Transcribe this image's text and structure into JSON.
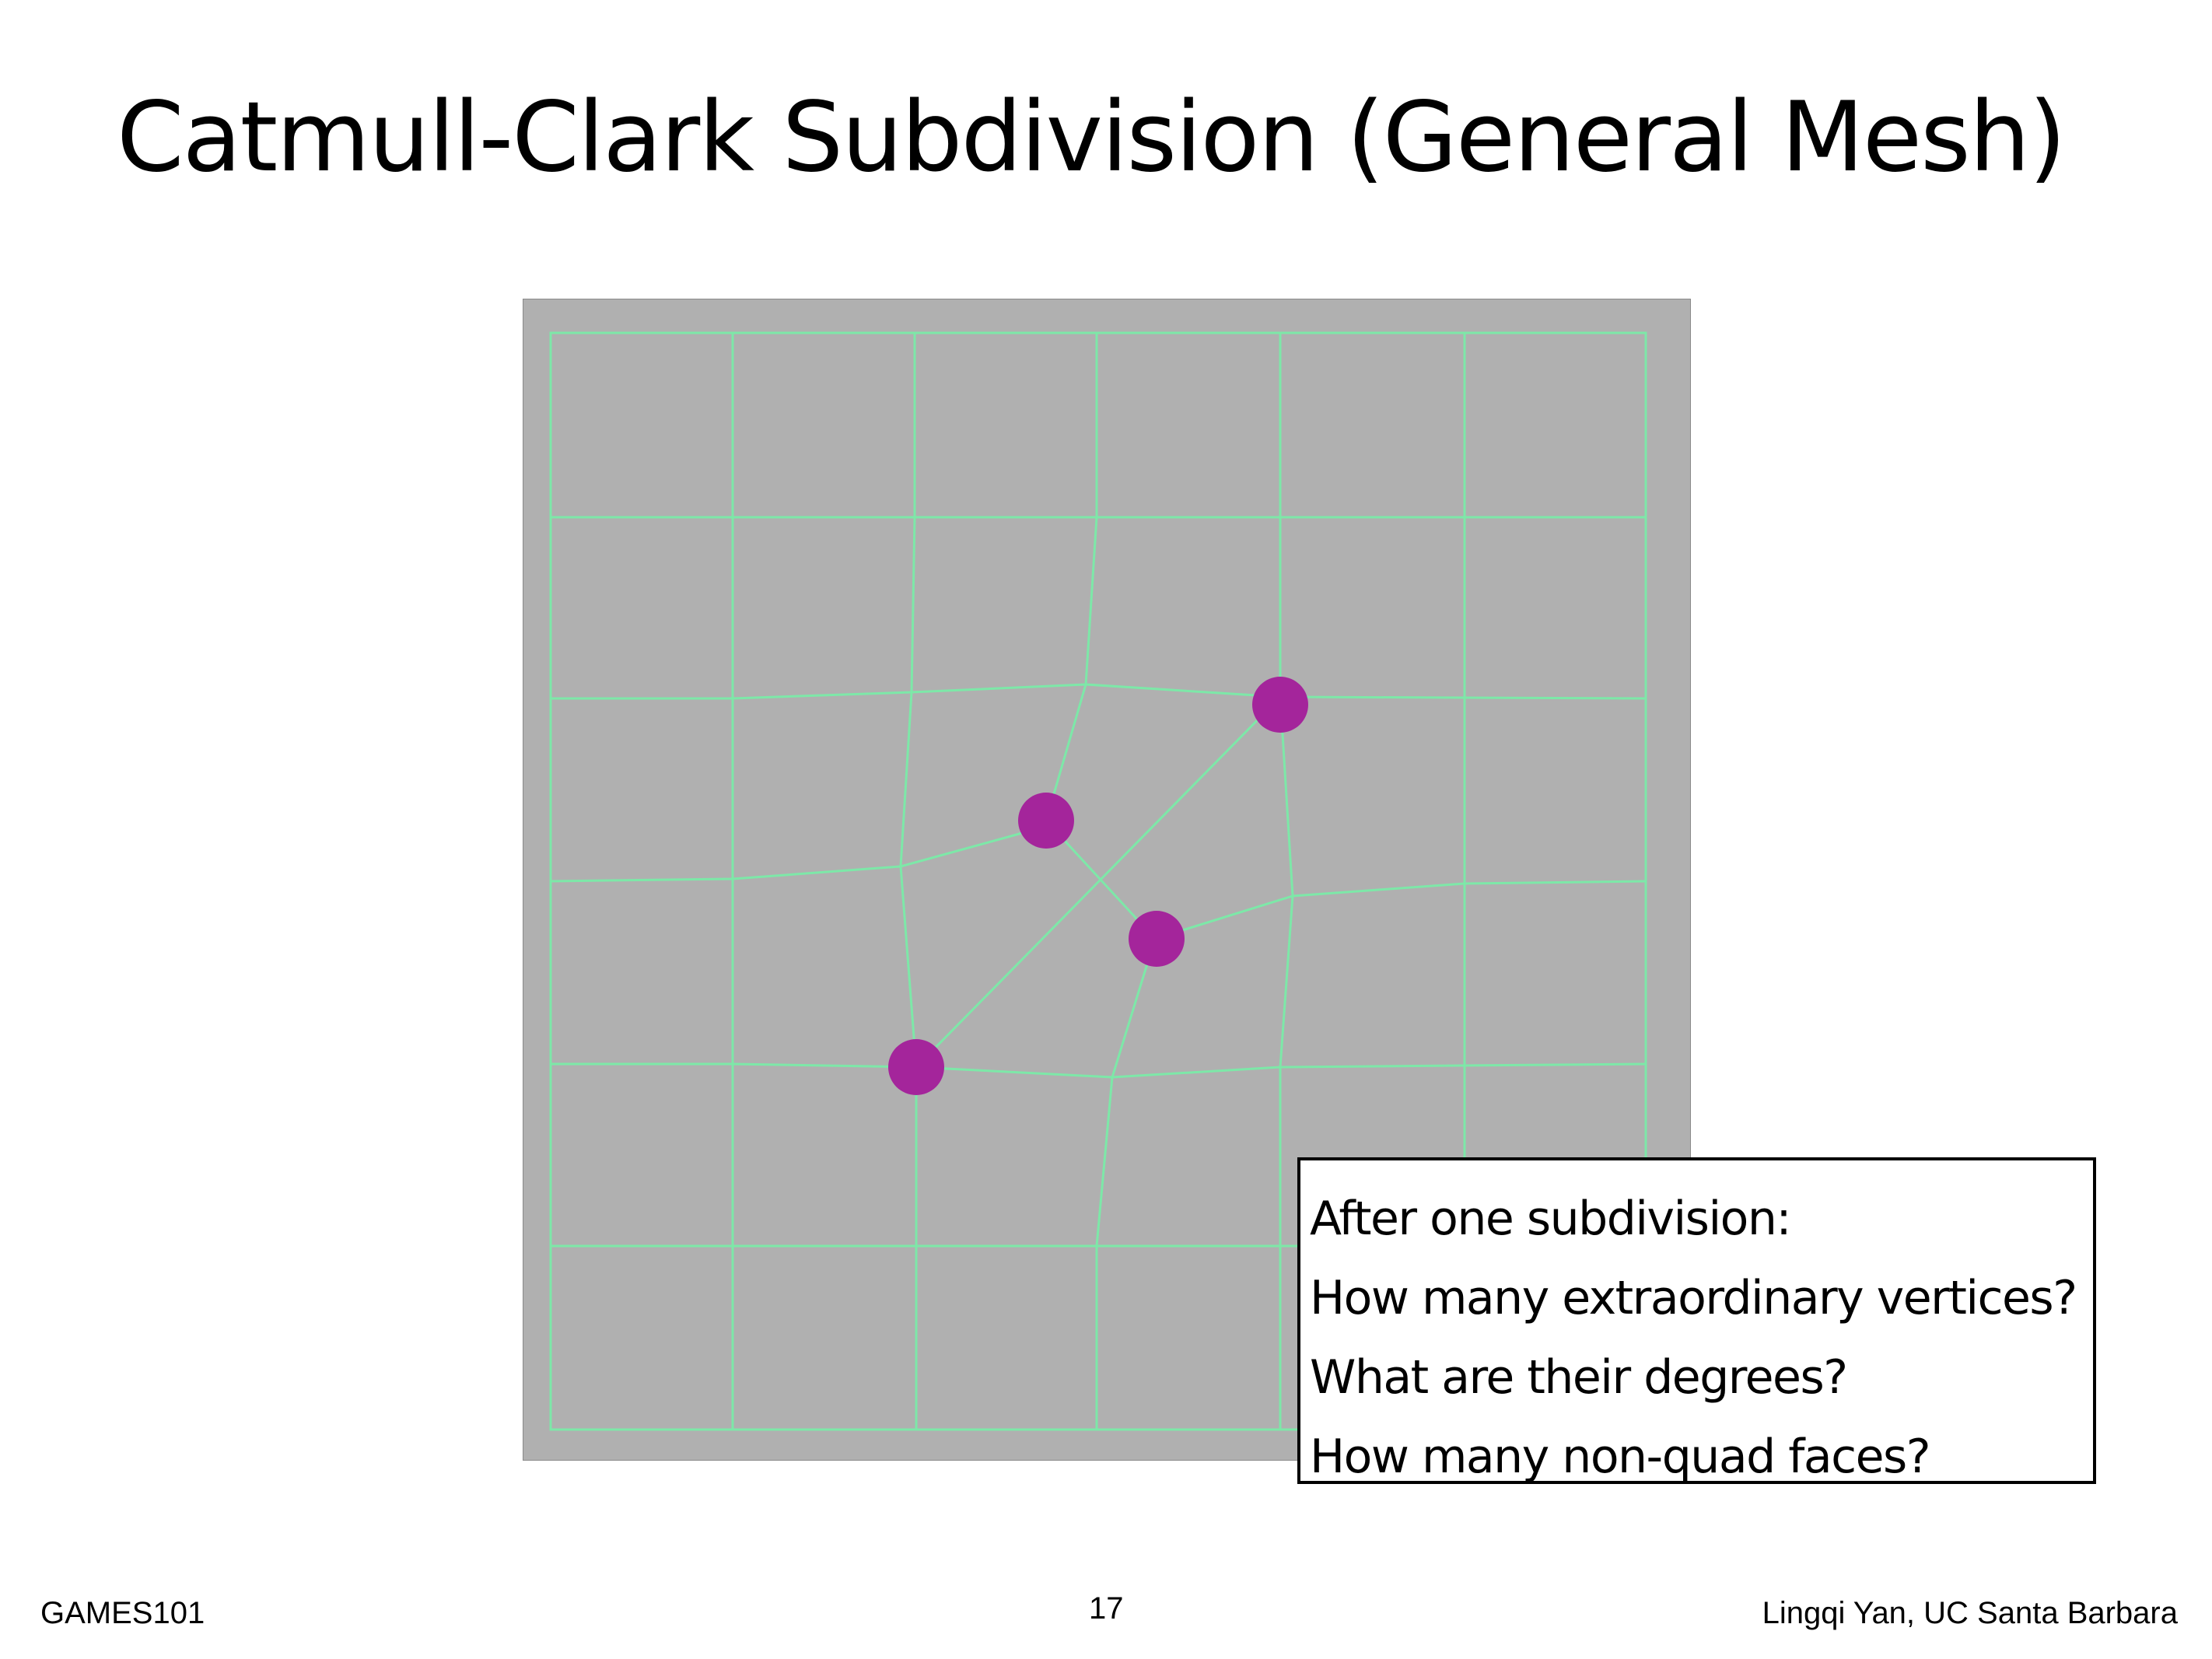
{
  "slide": {
    "title": "Catmull-Clark Subdivision (General Mesh)",
    "question_box": {
      "lines": [
        "After one subdivision:",
        "How many extraordinary vertices?",
        "What are their degrees?",
        "How many non-quad faces?"
      ]
    },
    "footer": {
      "course": "GAMES101",
      "page_number": "17",
      "author": "Lingqi Yan, UC Santa Barbara"
    }
  },
  "figure": {
    "background_color": "#b0b0b0",
    "edge_color": "#7de8a8",
    "vertex_color": "#a4259b",
    "highlighted_vertex_count": 4
  }
}
